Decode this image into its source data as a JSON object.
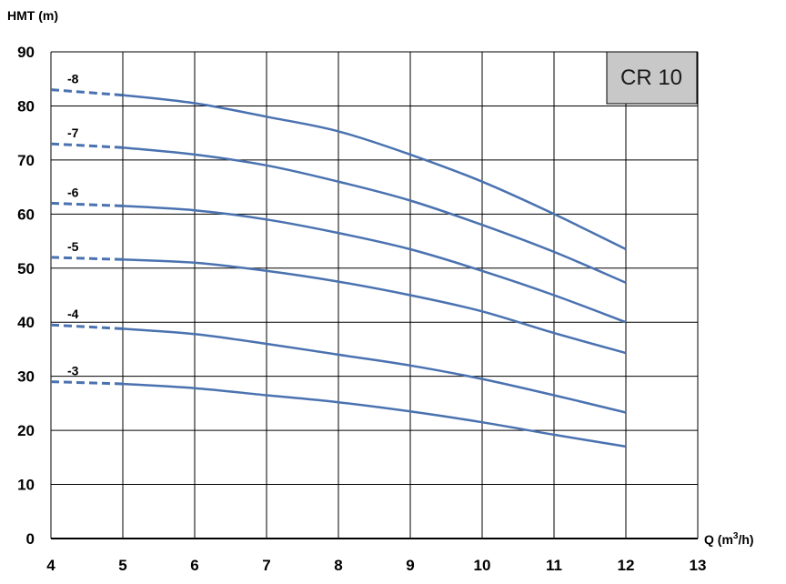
{
  "chart_data": {
    "type": "line",
    "ylabel": "HMT (m)",
    "xlabel_prefix": "Q (m",
    "xlabel_sup": "3",
    "xlabel_suffix": "/h)",
    "model_label": "CR 10",
    "xlim": [
      4,
      13
    ],
    "ylim": [
      0,
      90
    ],
    "x_ticks": [
      "4",
      "5",
      "6",
      "7",
      "8",
      "9",
      "10",
      "11",
      "12",
      "13"
    ],
    "y_ticks": [
      "0",
      "10",
      "20",
      "30",
      "40",
      "50",
      "60",
      "70",
      "80",
      "90"
    ],
    "grid": true,
    "colors": {
      "line": "#4a72b0",
      "grid": "#000000",
      "model_box": "#c8c8c8"
    },
    "series": [
      {
        "name": "-8",
        "dashed": {
          "x": [
            4,
            5
          ],
          "y": [
            83,
            82
          ]
        },
        "solid": {
          "x": [
            5,
            6,
            7,
            8,
            9,
            10,
            11,
            12
          ],
          "y": [
            82,
            80.5,
            78,
            75.3,
            71,
            66,
            60,
            53.5
          ]
        }
      },
      {
        "name": "-7",
        "dashed": {
          "x": [
            4,
            5
          ],
          "y": [
            73,
            72.3
          ]
        },
        "solid": {
          "x": [
            5,
            6,
            7,
            8,
            9,
            10,
            11,
            12
          ],
          "y": [
            72.3,
            71,
            69,
            66,
            62.5,
            58,
            53,
            47.3
          ]
        }
      },
      {
        "name": "-6",
        "dashed": {
          "x": [
            4,
            5
          ],
          "y": [
            62,
            61.5
          ]
        },
        "solid": {
          "x": [
            5,
            6,
            7,
            8,
            9,
            10,
            11,
            12
          ],
          "y": [
            61.5,
            60.7,
            59,
            56.5,
            53.5,
            49.5,
            45,
            40
          ]
        }
      },
      {
        "name": "-5",
        "dashed": {
          "x": [
            4,
            5
          ],
          "y": [
            52,
            51.6
          ]
        },
        "solid": {
          "x": [
            5,
            6,
            7,
            8,
            9,
            10,
            11,
            12
          ],
          "y": [
            51.6,
            51,
            49.5,
            47.5,
            45,
            42,
            38,
            34.3
          ]
        }
      },
      {
        "name": "-4",
        "dashed": {
          "x": [
            4,
            5
          ],
          "y": [
            39.5,
            38.8
          ]
        },
        "solid": {
          "x": [
            5,
            6,
            7,
            8,
            9,
            10,
            11,
            12
          ],
          "y": [
            38.8,
            37.8,
            36,
            34,
            32,
            29.5,
            26.5,
            23.3
          ]
        }
      },
      {
        "name": "-3",
        "dashed": {
          "x": [
            4,
            5
          ],
          "y": [
            29,
            28.6
          ]
        },
        "solid": {
          "x": [
            5,
            6,
            7,
            8,
            9,
            10,
            11,
            12
          ],
          "y": [
            28.6,
            27.8,
            26.5,
            25.2,
            23.5,
            21.5,
            19.2,
            17
          ]
        }
      }
    ]
  }
}
